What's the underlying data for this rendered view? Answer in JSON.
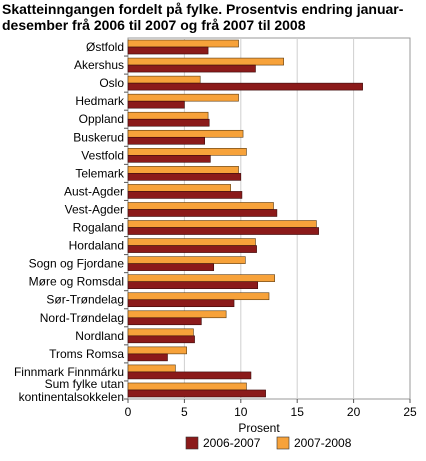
{
  "chart_data": {
    "type": "bar",
    "orientation": "horizontal",
    "title_lines": [
      "Skatteinngangen fordelt på fylke. Prosentvis endring januar-",
      "desember frå 2006 til 2007 og frå 2007 til 2008"
    ],
    "xlabel": "Prosent",
    "xlim": [
      0,
      25
    ],
    "xticks": [
      0,
      5,
      10,
      15,
      20,
      25
    ],
    "grid": true,
    "legend_position": "bottom",
    "categories": [
      [
        "Østfold"
      ],
      [
        "Akershus"
      ],
      [
        "Oslo"
      ],
      [
        "Hedmark"
      ],
      [
        "Oppland"
      ],
      [
        "Buskerud"
      ],
      [
        "Vestfold"
      ],
      [
        "Telemark"
      ],
      [
        "Aust-Agder"
      ],
      [
        "Vest-Agder"
      ],
      [
        "Rogaland"
      ],
      [
        "Hordaland"
      ],
      [
        "Sogn og Fjordane"
      ],
      [
        "Møre og Romsdal"
      ],
      [
        "Sør-Trøndelag"
      ],
      [
        "Nord-Trøndelag"
      ],
      [
        "Nordland"
      ],
      [
        "Troms Romsa"
      ],
      [
        "Finnmark Finnmárku"
      ],
      [
        "Sum fylke utan",
        "kontinentalsokkelen"
      ]
    ],
    "series": [
      {
        "name": "2006-2007",
        "color": "#8b1a1a",
        "values": [
          7.1,
          11.3,
          20.8,
          5.0,
          7.2,
          6.8,
          7.3,
          10.0,
          10.1,
          13.2,
          16.9,
          11.4,
          7.6,
          11.5,
          9.4,
          6.5,
          5.9,
          3.5,
          10.9,
          12.2
        ]
      },
      {
        "name": "2007-2008",
        "color": "#f7a23a",
        "values": [
          9.8,
          13.8,
          6.4,
          9.8,
          7.1,
          10.2,
          10.5,
          9.8,
          9.1,
          12.9,
          16.7,
          11.3,
          10.4,
          13.0,
          12.5,
          8.7,
          5.8,
          5.2,
          4.2,
          10.5
        ]
      }
    ]
  }
}
